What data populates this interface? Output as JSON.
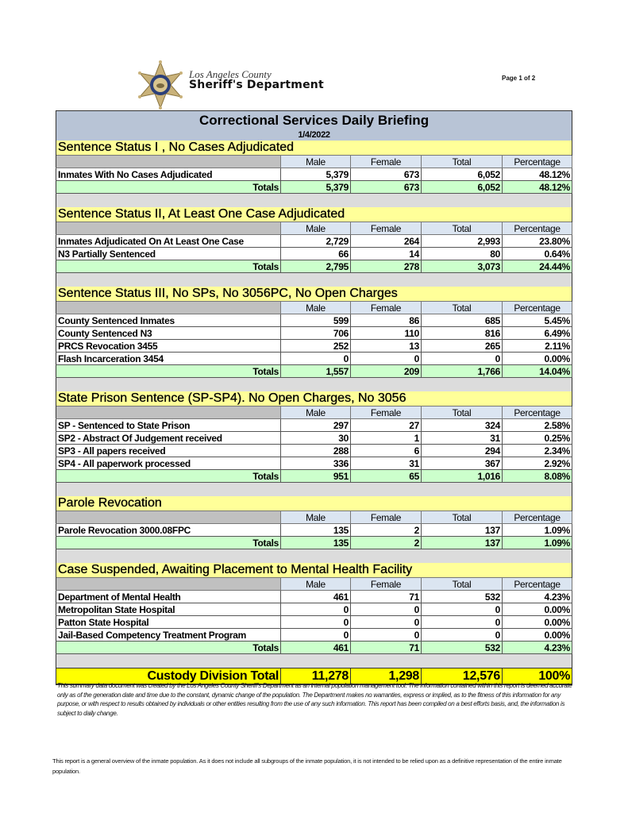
{
  "header": {
    "logo_line1": "Los Angeles County",
    "logo_line2": "Sheriff's Department",
    "page": "Page 1 of 2"
  },
  "report": {
    "title": "Correctional Services Daily Briefing",
    "date": "1/4/2022"
  },
  "columns": [
    "Male",
    "Female",
    "Total",
    "Percentage"
  ],
  "totals_label": "Totals",
  "sections": [
    {
      "title": "Sentence Status I , No Cases Adjudicated",
      "rows": [
        [
          "Inmates With No Cases Adjudicated",
          "5,379",
          "673",
          "6,052",
          "48.12%"
        ]
      ],
      "totals": [
        "5,379",
        "673",
        "6,052",
        "48.12%"
      ]
    },
    {
      "title": "Sentence Status II, At Least One Case Adjudicated",
      "rows": [
        [
          "Inmates Adjudicated On At Least One Case",
          "2,729",
          "264",
          "2,993",
          "23.80%"
        ],
        [
          "N3 Partially Sentenced",
          "66",
          "14",
          "80",
          "0.64%"
        ]
      ],
      "totals": [
        "2,795",
        "278",
        "3,073",
        "24.44%"
      ]
    },
    {
      "title": "Sentence Status III, No SPs, No 3056PC, No Open Charges",
      "rows": [
        [
          "County Sentenced Inmates",
          "599",
          "86",
          "685",
          "5.45%"
        ],
        [
          "County Sentenced N3",
          "706",
          "110",
          "816",
          "6.49%"
        ],
        [
          "PRCS Revocation 3455",
          "252",
          "13",
          "265",
          "2.11%"
        ],
        [
          "Flash Incarceration 3454",
          "0",
          "0",
          "0",
          "0.00%"
        ]
      ],
      "totals": [
        "1,557",
        "209",
        "1,766",
        "14.04%"
      ]
    },
    {
      "title": "State Prison Sentence (SP-SP4). No Open Charges, No 3056",
      "rows": [
        [
          "SP - Sentenced to State Prison",
          "297",
          "27",
          "324",
          "2.58%"
        ],
        [
          "SP2 - Abstract Of Judgement received",
          "30",
          "1",
          "31",
          "0.25%"
        ],
        [
          "SP3 - All papers received",
          "288",
          "6",
          "294",
          "2.34%"
        ],
        [
          "SP4 - All paperwork processed",
          "336",
          "31",
          "367",
          "2.92%"
        ]
      ],
      "totals": [
        "951",
        "65",
        "1,016",
        "8.08%"
      ]
    },
    {
      "title": "Parole Revocation",
      "rows": [
        [
          "Parole Revocation 3000.08FPC",
          "135",
          "2",
          "137",
          "1.09%"
        ]
      ],
      "totals": [
        "135",
        "2",
        "137",
        "1.09%"
      ]
    },
    {
      "title": "Case Suspended, Awaiting Placement to Mental Health Facility",
      "rows": [
        [
          "Department of Mental Health",
          "461",
          "71",
          "532",
          "4.23%"
        ],
        [
          "Metropolitan State Hospital",
          "0",
          "0",
          "0",
          "0.00%"
        ],
        [
          "Patton State Hospital",
          "0",
          "0",
          "0",
          "0.00%"
        ],
        [
          "Jail-Based Competency Treatment Program",
          "0",
          "0",
          "0",
          "0.00%"
        ]
      ],
      "totals": [
        "461",
        "71",
        "532",
        "4.23%"
      ]
    }
  ],
  "grand_total": {
    "label": "Custody Division Total",
    "values": [
      "11,278",
      "1,298",
      "12,576",
      "100%"
    ]
  },
  "disclaimer": "This summary data document was created by the Los Angeles County Sheriff's Department as an internal population management tool.  The information contained within this report is deemed accurate only as of the generation date and time due to the constant, dynamic change of the population.  The Department makes no warranties, express or implied, as to the fitness of this information for any purpose, or with respect to results obtained by individuals or other entities resulting from the use of any such information.  This report has been compiled on a best efforts basis, and, the information is subject to daily change.",
  "footer_note": "This report is a general overview of the inmate population.  As it does not include all subgroups of the inmate population, it is not intended to be relied upon as a definitive representation of the entire inmate population."
}
